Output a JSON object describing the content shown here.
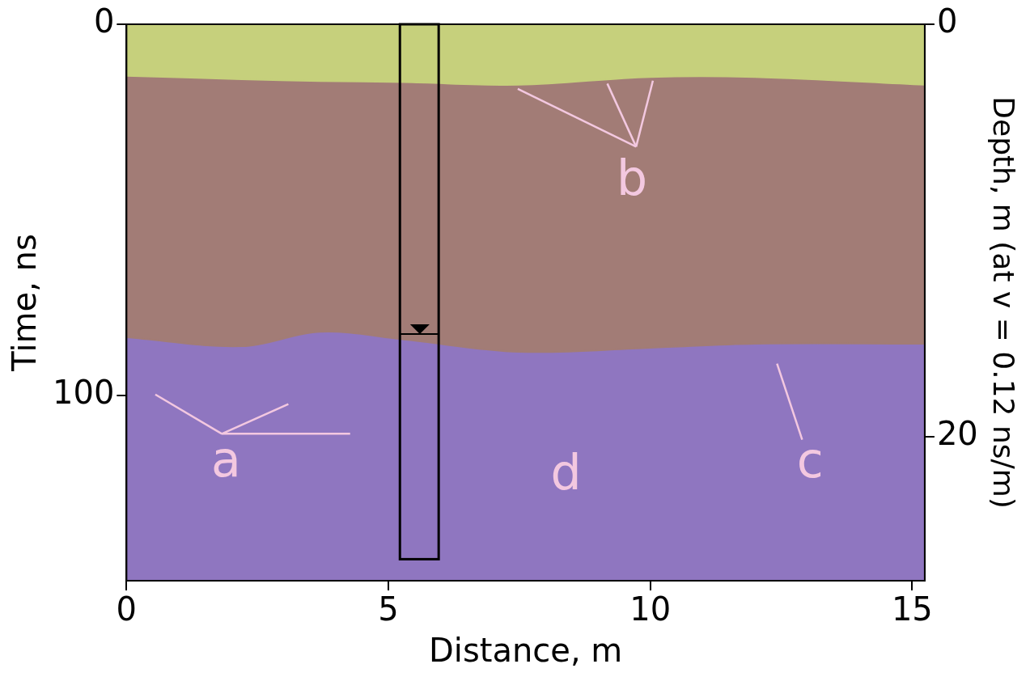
{
  "chart_data": {
    "type": "area",
    "x_label": "Distance, m",
    "y_label": "Time, ns",
    "y2_label": "Depth, m (at v = 0.12 ns/m)",
    "xlim": [
      0,
      15.24
    ],
    "xticks": [
      0,
      5,
      10,
      15
    ],
    "ylim": [
      150,
      0
    ],
    "yticks": [
      0,
      100
    ],
    "y2lim": [
      27,
      0
    ],
    "y2ticks": [
      0,
      20
    ],
    "grid": false,
    "color": "#8f76c0",
    "x": [
      0,
      2.2,
      3.7,
      5.3,
      7.5,
      10,
      12,
      15.24
    ],
    "series": [
      {
        "color": "#c6d07c",
        "values": [
          13.9,
          14.8,
          15.3,
          15.6,
          16.3,
          14.2,
          14.2,
          16.3
        ]
      },
      {
        "color": "#a27c76",
        "values": [
          84.4,
          86.8,
          82.9,
          85.0,
          88.3,
          87.2,
          86.1,
          86.1
        ]
      }
    ],
    "box": {
      "x": [
        5.22,
        5.96
      ],
      "y": [
        0,
        144.2
      ]
    },
    "water_table": {
      "x": 5.6,
      "y": 83.5
    },
    "annotations": [
      {
        "text": "a",
        "x": 1.9,
        "y": 118.5,
        "from": [
          1.82,
          110.4
        ],
        "targets": [
          [
            0.55,
            99.8
          ],
          [
            3.09,
            102.4
          ],
          [
            4.27,
            110.4
          ]
        ]
      },
      {
        "text": "b",
        "x": 9.65,
        "y": 42.7,
        "from": [
          9.73,
          33
        ],
        "targets": [
          [
            7.47,
            17.4
          ],
          [
            9.18,
            16
          ],
          [
            10.05,
            15.2
          ]
        ]
      },
      {
        "text": "c",
        "x": 13.05,
        "y": 118.7,
        "from": [
          12.9,
          112
        ],
        "targets": [
          [
            12.42,
            91.5
          ]
        ]
      },
      {
        "text": "d",
        "x": 8.39,
        "y": 122,
        "from": null,
        "targets": []
      }
    ]
  }
}
